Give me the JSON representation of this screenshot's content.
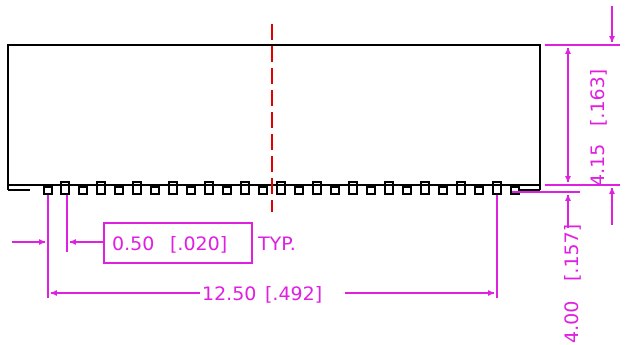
{
  "dimensions": {
    "pitch": {
      "value": "0.50",
      "imperial": "[.020]",
      "note": "TYP."
    },
    "span": {
      "value": "12.50",
      "imperial": "[.492]"
    },
    "body_height": {
      "value": "4.15",
      "imperial": "[.163]"
    },
    "pin_height": {
      "value": "4.00",
      "imperial": "[.157]"
    }
  },
  "colors": {
    "outline": "#000000",
    "dimension": "#e020e0",
    "centerline": "#e00000"
  }
}
